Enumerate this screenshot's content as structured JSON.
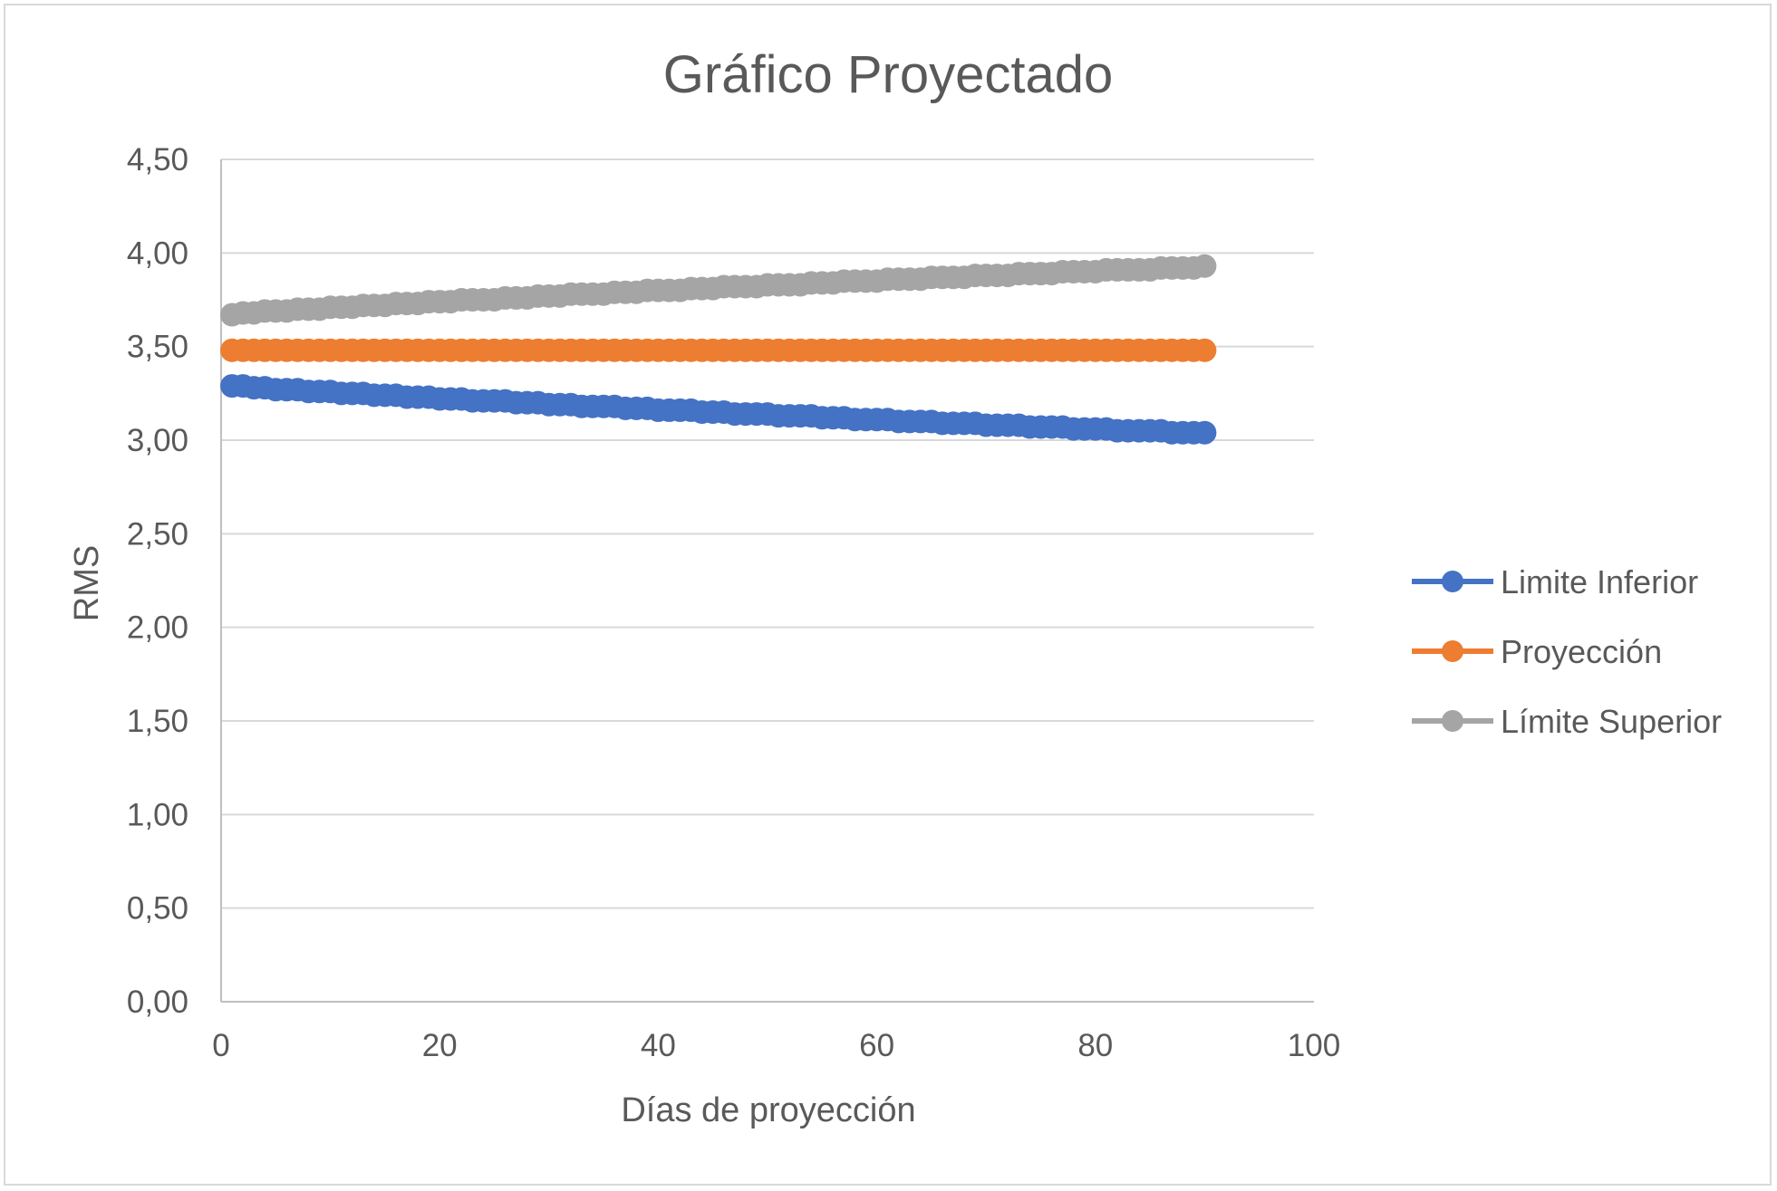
{
  "chart_data": {
    "type": "line",
    "title": "Gráfico Proyectado",
    "xlabel": "Días de proyección",
    "ylabel": "RMS",
    "xlim": [
      0,
      100
    ],
    "ylim": [
      0,
      4.5
    ],
    "x_ticks": [
      "0",
      "20",
      "40",
      "60",
      "80",
      "100"
    ],
    "y_ticks": [
      "0,00",
      "0,50",
      "1,00",
      "1,50",
      "2,00",
      "2,50",
      "3,00",
      "3,50",
      "4,00",
      "4,50"
    ],
    "grid": "horizontal",
    "legend_position": "right",
    "x": [
      1,
      2,
      3,
      4,
      5,
      6,
      7,
      8,
      9,
      10,
      11,
      12,
      13,
      14,
      15,
      16,
      17,
      18,
      19,
      20,
      21,
      22,
      23,
      24,
      25,
      26,
      27,
      28,
      29,
      30,
      31,
      32,
      33,
      34,
      35,
      36,
      37,
      38,
      39,
      40,
      41,
      42,
      43,
      44,
      45,
      46,
      47,
      48,
      49,
      50,
      51,
      52,
      53,
      54,
      55,
      56,
      57,
      58,
      59,
      60,
      61,
      62,
      63,
      64,
      65,
      66,
      67,
      68,
      69,
      70,
      71,
      72,
      73,
      74,
      75,
      76,
      77,
      78,
      79,
      80,
      81,
      82,
      83,
      84,
      85,
      86,
      87,
      88,
      89,
      90
    ],
    "series": [
      {
        "name": "Limite Inferior",
        "color": "#4472c4",
        "values": [
          3.29,
          3.29,
          3.28,
          3.28,
          3.27,
          3.27,
          3.27,
          3.26,
          3.26,
          3.26,
          3.25,
          3.25,
          3.25,
          3.24,
          3.24,
          3.24,
          3.23,
          3.23,
          3.23,
          3.22,
          3.22,
          3.22,
          3.21,
          3.21,
          3.21,
          3.21,
          3.2,
          3.2,
          3.2,
          3.19,
          3.19,
          3.19,
          3.18,
          3.18,
          3.18,
          3.18,
          3.17,
          3.17,
          3.17,
          3.16,
          3.16,
          3.16,
          3.16,
          3.15,
          3.15,
          3.15,
          3.14,
          3.14,
          3.14,
          3.14,
          3.13,
          3.13,
          3.13,
          3.13,
          3.12,
          3.12,
          3.12,
          3.11,
          3.11,
          3.11,
          3.11,
          3.1,
          3.1,
          3.1,
          3.1,
          3.09,
          3.09,
          3.09,
          3.09,
          3.08,
          3.08,
          3.08,
          3.08,
          3.07,
          3.07,
          3.07,
          3.07,
          3.06,
          3.06,
          3.06,
          3.06,
          3.05,
          3.05,
          3.05,
          3.05,
          3.05,
          3.04,
          3.04,
          3.04,
          3.04
        ]
      },
      {
        "name": "Proyección",
        "color": "#ed7d31",
        "values": [
          3.48,
          3.48,
          3.48,
          3.48,
          3.48,
          3.48,
          3.48,
          3.48,
          3.48,
          3.48,
          3.48,
          3.48,
          3.48,
          3.48,
          3.48,
          3.48,
          3.48,
          3.48,
          3.48,
          3.48,
          3.48,
          3.48,
          3.48,
          3.48,
          3.48,
          3.48,
          3.48,
          3.48,
          3.48,
          3.48,
          3.48,
          3.48,
          3.48,
          3.48,
          3.48,
          3.48,
          3.48,
          3.48,
          3.48,
          3.48,
          3.48,
          3.48,
          3.48,
          3.48,
          3.48,
          3.48,
          3.48,
          3.48,
          3.48,
          3.48,
          3.48,
          3.48,
          3.48,
          3.48,
          3.48,
          3.48,
          3.48,
          3.48,
          3.48,
          3.48,
          3.48,
          3.48,
          3.48,
          3.48,
          3.48,
          3.48,
          3.48,
          3.48,
          3.48,
          3.48,
          3.48,
          3.48,
          3.48,
          3.48,
          3.48,
          3.48,
          3.48,
          3.48,
          3.48,
          3.48,
          3.48,
          3.48,
          3.48,
          3.48,
          3.48,
          3.48,
          3.48,
          3.48,
          3.48,
          3.48
        ]
      },
      {
        "name": "Límite Superior",
        "color": "#a5a5a5",
        "values": [
          3.67,
          3.68,
          3.68,
          3.69,
          3.69,
          3.69,
          3.7,
          3.7,
          3.7,
          3.71,
          3.71,
          3.71,
          3.72,
          3.72,
          3.72,
          3.73,
          3.73,
          3.73,
          3.74,
          3.74,
          3.74,
          3.75,
          3.75,
          3.75,
          3.75,
          3.76,
          3.76,
          3.76,
          3.77,
          3.77,
          3.77,
          3.78,
          3.78,
          3.78,
          3.78,
          3.79,
          3.79,
          3.79,
          3.8,
          3.8,
          3.8,
          3.8,
          3.81,
          3.81,
          3.81,
          3.82,
          3.82,
          3.82,
          3.82,
          3.83,
          3.83,
          3.83,
          3.83,
          3.84,
          3.84,
          3.84,
          3.85,
          3.85,
          3.85,
          3.85,
          3.86,
          3.86,
          3.86,
          3.86,
          3.87,
          3.87,
          3.87,
          3.87,
          3.88,
          3.88,
          3.88,
          3.88,
          3.89,
          3.89,
          3.89,
          3.89,
          3.9,
          3.9,
          3.9,
          3.9,
          3.91,
          3.91,
          3.91,
          3.91,
          3.91,
          3.92,
          3.92,
          3.92,
          3.92,
          3.93
        ]
      }
    ]
  }
}
